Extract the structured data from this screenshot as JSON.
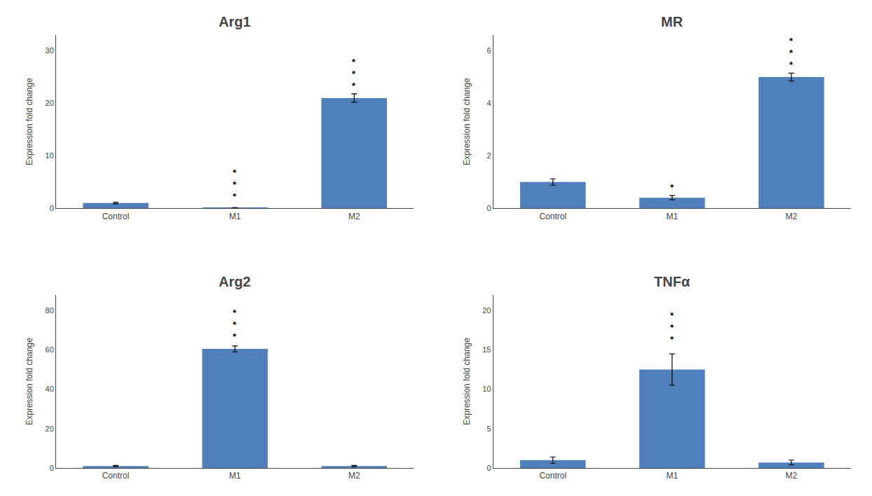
{
  "chart_data": [
    {
      "type": "bar",
      "title": "Arg1",
      "ylabel": "Expression fold change",
      "categories": [
        "Control",
        "M1",
        "M2"
      ],
      "values": [
        1.0,
        0.05,
        21.0
      ],
      "errors": [
        0.15,
        0.05,
        0.8
      ],
      "color": "#5080bc",
      "ylim": [
        0,
        33
      ],
      "yticks": [
        0,
        10,
        20,
        30
      ],
      "grid": false,
      "annotations": [
        {
          "category": "M1",
          "y": 1.0,
          "text": "***"
        },
        {
          "category": "M2",
          "y": 22.0,
          "text": "***"
        }
      ]
    },
    {
      "type": "bar",
      "title": "MR",
      "ylabel": "Expression fold change",
      "categories": [
        "Control",
        "M1",
        "M2"
      ],
      "values": [
        1.0,
        0.4,
        5.0
      ],
      "errors": [
        0.12,
        0.08,
        0.15
      ],
      "color": "#5080bc",
      "ylim": [
        0,
        6.6
      ],
      "yticks": [
        0,
        2,
        4,
        6
      ],
      "grid": false,
      "annotations": [
        {
          "category": "M1",
          "y": 0.55,
          "text": "*"
        },
        {
          "category": "M2",
          "y": 5.2,
          "text": "***"
        }
      ]
    },
    {
      "type": "bar",
      "title": "Arg2",
      "ylabel": "Expression fold change",
      "categories": [
        "Control",
        "M1",
        "M2"
      ],
      "values": [
        1.0,
        60.5,
        1.0
      ],
      "errors": [
        0.3,
        1.5,
        0.3
      ],
      "color": "#5080bc",
      "ylim": [
        0,
        88
      ],
      "yticks": [
        0,
        20,
        40,
        60,
        80
      ],
      "grid": false,
      "annotations": [
        {
          "category": "M1",
          "y": 63.5,
          "text": "***"
        }
      ]
    },
    {
      "type": "bar",
      "title": "TNFα",
      "ylabel": "Expression fold change",
      "categories": [
        "Control",
        "M1",
        "M2"
      ],
      "values": [
        1.0,
        12.5,
        0.7
      ],
      "errors": [
        0.4,
        2.0,
        0.3
      ],
      "color": "#5080bc",
      "ylim": [
        0,
        22
      ],
      "yticks": [
        0,
        5,
        10,
        15,
        20
      ],
      "grid": false,
      "annotations": [
        {
          "category": "M1",
          "y": 15.5,
          "text": "***"
        }
      ]
    }
  ]
}
